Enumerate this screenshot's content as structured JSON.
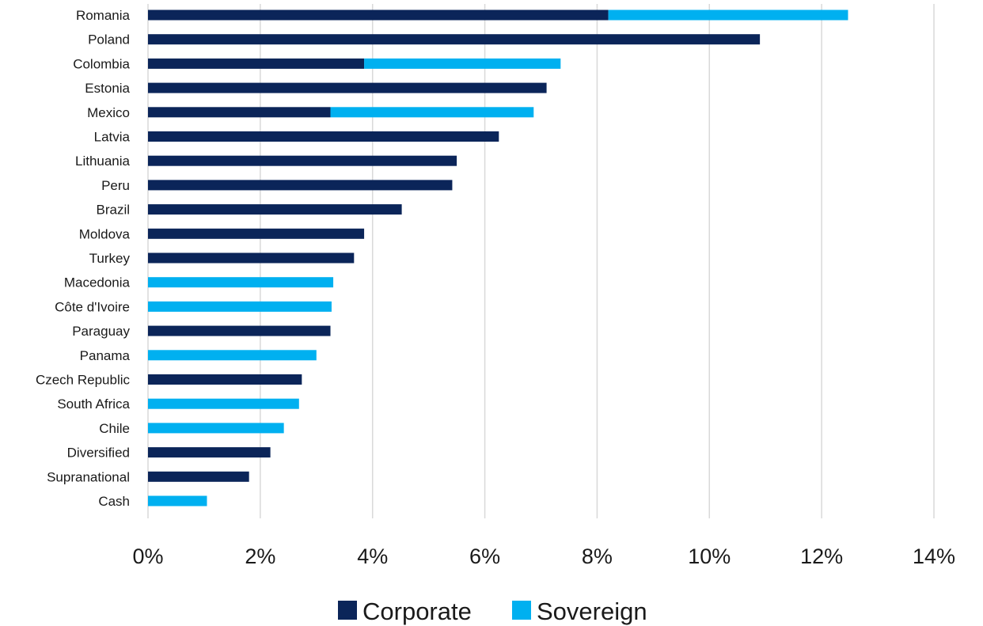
{
  "chart_data": {
    "type": "bar",
    "orientation": "horizontal",
    "stacked": true,
    "categories": [
      "Romania",
      "Poland",
      "Colombia",
      "Estonia",
      "Mexico",
      "Latvia",
      "Lithuania",
      "Peru",
      "Brazil",
      "Moldova",
      "Turkey",
      "Macedonia",
      "Côte d'Ivoire",
      "Paraguay",
      "Panama",
      "Czech Republic",
      "South Africa",
      "Chile",
      "Diversified",
      "Supranational",
      "Cash"
    ],
    "series": [
      {
        "name": "Corporate",
        "color": "#0b2559",
        "values": [
          8.2,
          10.9,
          3.85,
          7.1,
          3.25,
          6.25,
          5.5,
          5.42,
          4.52,
          3.85,
          3.67,
          0,
          0,
          3.25,
          0,
          2.74,
          0,
          0,
          2.18,
          1.8,
          0
        ]
      },
      {
        "name": "Sovereign",
        "color": "#00b0f0",
        "values": [
          4.27,
          0,
          3.5,
          0,
          3.62,
          0,
          0,
          0,
          0,
          0,
          0,
          3.3,
          3.27,
          0,
          3.0,
          0,
          2.69,
          2.42,
          0,
          0,
          1.05
        ]
      }
    ],
    "xlim": [
      0,
      14
    ],
    "xticks": [
      "0%",
      "2%",
      "4%",
      "6%",
      "8%",
      "10%",
      "12%",
      "14%"
    ],
    "grid": "vertical",
    "legend": "bottom",
    "title": "",
    "xlabel": "",
    "ylabel": ""
  }
}
